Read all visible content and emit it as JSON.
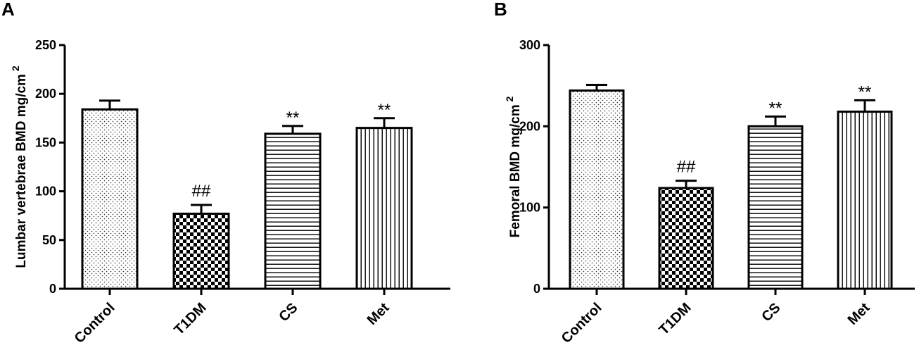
{
  "chart_data": [
    {
      "type": "bar",
      "panel": "A",
      "categories": [
        "Control",
        "T1DM",
        "CS",
        "Met"
      ],
      "values": [
        184,
        77,
        159,
        165
      ],
      "errors": [
        9,
        9,
        8,
        10
      ],
      "annotations": [
        "",
        "##",
        "**",
        "**"
      ],
      "patterns": [
        "dots",
        "checker",
        "hlines",
        "vlines"
      ],
      "title": "",
      "xlabel": "",
      "ylabel": "Lumbar vertebrae BMD mg/cm",
      "ylabel_sup": "2",
      "ylim": [
        0,
        250
      ],
      "yticks": [
        0,
        50,
        100,
        150,
        200,
        250
      ],
      "grid": false
    },
    {
      "type": "bar",
      "panel": "B",
      "categories": [
        "Control",
        "T1DM",
        "CS",
        "Met"
      ],
      "values": [
        244,
        124,
        200,
        218
      ],
      "errors": [
        7,
        9,
        12,
        14
      ],
      "annotations": [
        "",
        "##",
        "**",
        "**"
      ],
      "patterns": [
        "dots",
        "checker",
        "hlines",
        "vlines"
      ],
      "title": "",
      "xlabel": "",
      "ylabel": "Femoral BMD mg/cm",
      "ylabel_sup": "2",
      "ylim": [
        0,
        300
      ],
      "yticks": [
        0,
        100,
        200,
        300
      ],
      "grid": false
    }
  ]
}
